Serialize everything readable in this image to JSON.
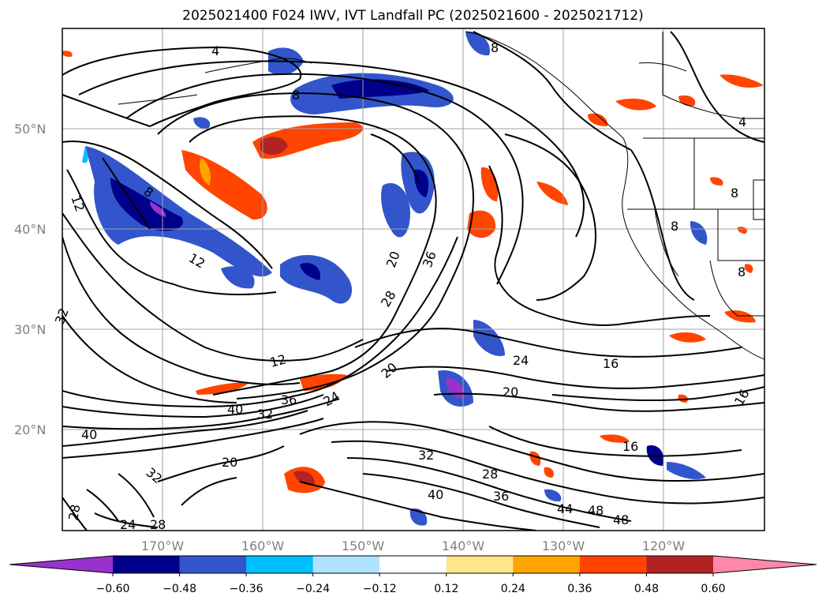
{
  "title": "2025021400 F024 IWV, IVT Landfall PC (2025021600 - 2025021712)",
  "lat_labels": [
    "50°N",
    "40°N",
    "30°N",
    "20°N"
  ],
  "lon_labels": [
    "170°W",
    "160°W",
    "150°W",
    "140°W",
    "130°W",
    "120°W"
  ],
  "contour_labels": [
    "4",
    "8",
    "4",
    "12",
    "8",
    "12",
    "20",
    "36",
    "28",
    "12",
    "20",
    "24",
    "16",
    "20",
    "40",
    "32",
    "36",
    "24",
    "40",
    "20",
    "32",
    "28",
    "36",
    "40",
    "44",
    "48",
    "48",
    "16",
    "16",
    "32",
    "28",
    "24",
    "28",
    "8",
    "8",
    "8",
    "32",
    "8"
  ],
  "colorbar": {
    "ticks": [
      "−0.60",
      "−0.48",
      "−0.36",
      "−0.24",
      "−0.12",
      "0.12",
      "0.24",
      "0.36",
      "0.48",
      "0.60"
    ],
    "colors": [
      "#9932cc",
      "#00008b",
      "#3355cc",
      "#00bfff",
      "#b0e2ff",
      "#ffffff",
      "#ffe68c",
      "#ffa500",
      "#ff4500",
      "#b22222",
      "#ff88aa"
    ]
  },
  "palette": {
    "land_line": "#000000",
    "grid": "#a0a0a0"
  }
}
